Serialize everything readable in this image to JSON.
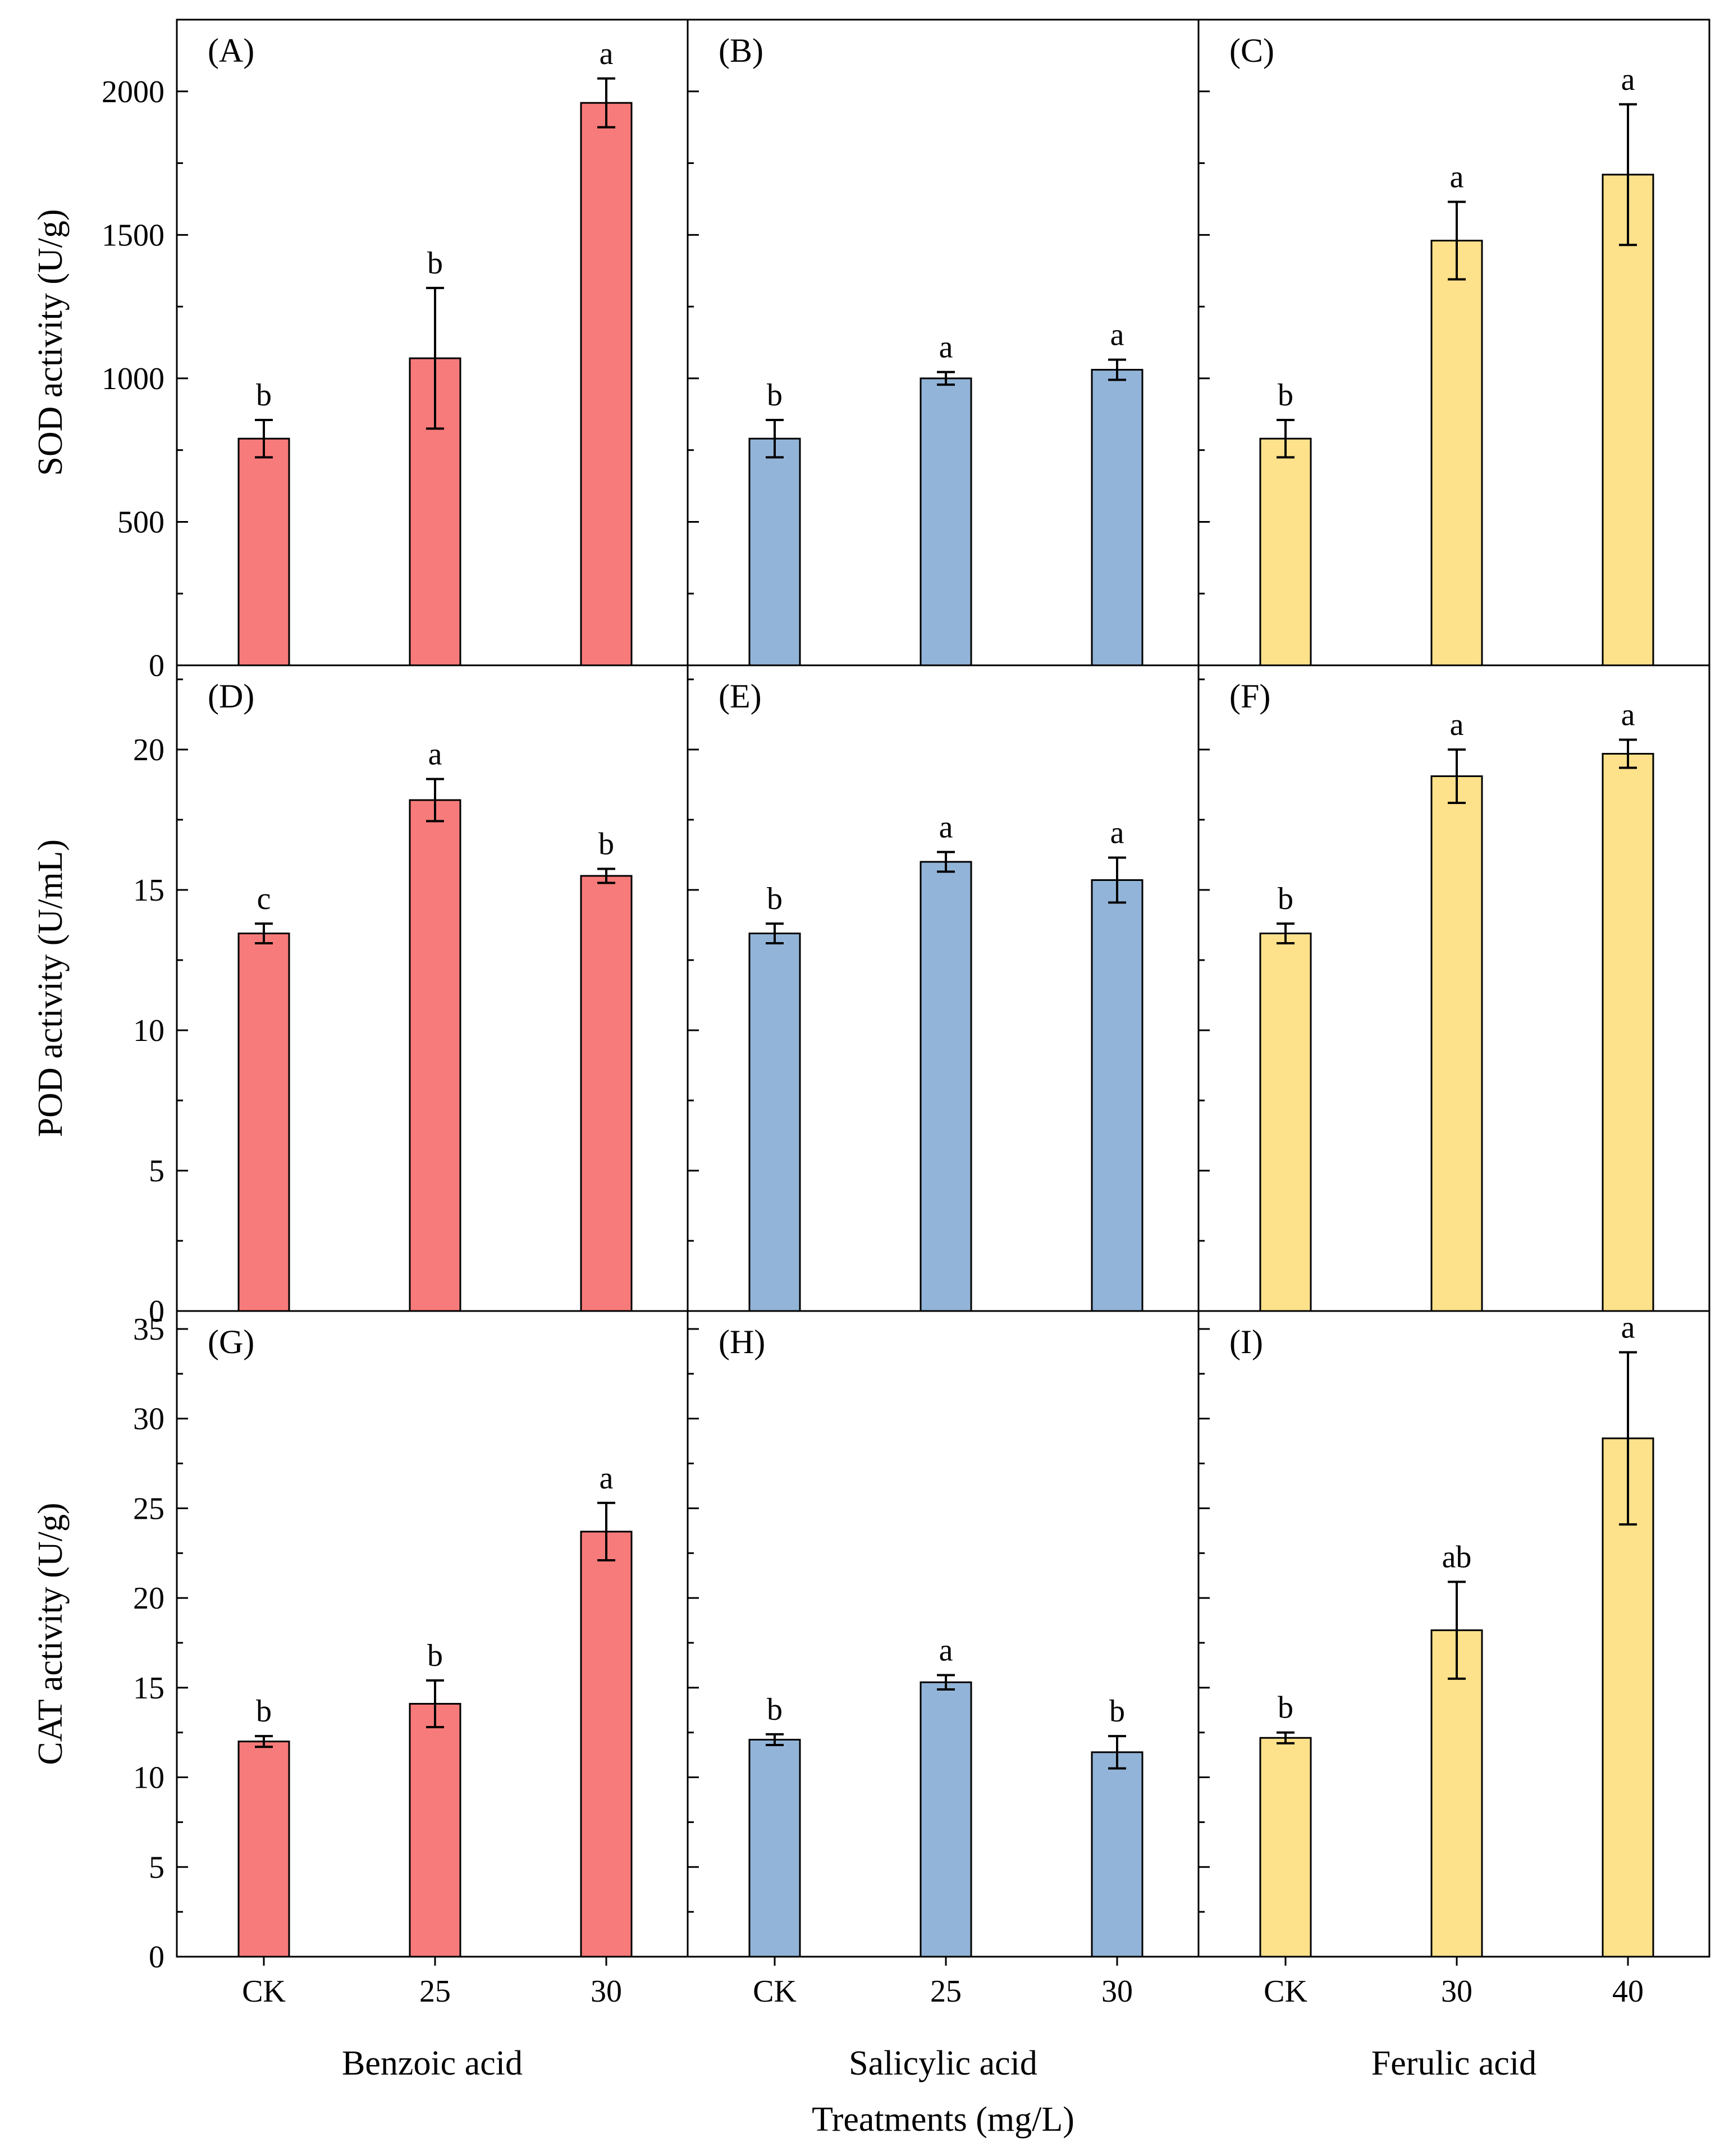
{
  "figure": {
    "x_axis_title": "Treatments (mg/L)"
  },
  "chart_data": [
    {
      "type": "bar",
      "panel": "(A)",
      "ylabel": "SOD activity (U/g)",
      "categories": [
        "CK",
        "25",
        "30"
      ],
      "values": [
        790,
        1070,
        1960
      ],
      "errors": [
        65,
        245,
        85
      ],
      "significance": [
        "b",
        "b",
        "a"
      ],
      "ylim": [
        0,
        2250
      ],
      "yticks": [
        0,
        500,
        1000,
        1500,
        2000
      ],
      "color": "#f77b7a",
      "xlabel": ""
    },
    {
      "type": "bar",
      "panel": "(B)",
      "ylabel": "",
      "categories": [
        "CK",
        "25",
        "30"
      ],
      "values": [
        790,
        1000,
        1030
      ],
      "errors": [
        65,
        22,
        35
      ],
      "significance": [
        "b",
        "a",
        "a"
      ],
      "ylim": [
        0,
        2250
      ],
      "yticks": [
        0,
        500,
        1000,
        1500,
        2000
      ],
      "color": "#92b4d8",
      "xlabel": ""
    },
    {
      "type": "bar",
      "panel": "(C)",
      "ylabel": "",
      "categories": [
        "CK",
        "30",
        "40"
      ],
      "values": [
        790,
        1480,
        1710
      ],
      "errors": [
        65,
        135,
        245
      ],
      "significance": [
        "b",
        "a",
        "a"
      ],
      "ylim": [
        0,
        2250
      ],
      "yticks": [
        0,
        500,
        1000,
        1500,
        2000
      ],
      "color": "#fde18b",
      "xlabel": ""
    },
    {
      "type": "bar",
      "panel": "(D)",
      "ylabel": "POD activity (U/mL)",
      "categories": [
        "CK",
        "25",
        "30"
      ],
      "values": [
        13.45,
        18.2,
        15.5
      ],
      "errors": [
        0.35,
        0.75,
        0.25
      ],
      "significance": [
        "c",
        "a",
        "b"
      ],
      "ylim": [
        0,
        23
      ],
      "yticks": [
        0,
        5,
        10,
        15,
        20
      ],
      "color": "#f77b7a",
      "xlabel": ""
    },
    {
      "type": "bar",
      "panel": "(E)",
      "ylabel": "",
      "categories": [
        "CK",
        "25",
        "30"
      ],
      "values": [
        13.45,
        16.0,
        15.35
      ],
      "errors": [
        0.35,
        0.35,
        0.8
      ],
      "significance": [
        "b",
        "a",
        "a"
      ],
      "ylim": [
        0,
        23
      ],
      "yticks": [
        0,
        5,
        10,
        15,
        20
      ],
      "color": "#92b4d8",
      "xlabel": ""
    },
    {
      "type": "bar",
      "panel": "(F)",
      "ylabel": "",
      "categories": [
        "CK",
        "30",
        "40"
      ],
      "values": [
        13.45,
        19.05,
        19.85
      ],
      "errors": [
        0.35,
        0.95,
        0.5
      ],
      "significance": [
        "b",
        "a",
        "a"
      ],
      "ylim": [
        0,
        23
      ],
      "yticks": [
        0,
        5,
        10,
        15,
        20
      ],
      "color": "#fde18b",
      "xlabel": ""
    },
    {
      "type": "bar",
      "panel": "(G)",
      "ylabel": "CAT activity (U/g)",
      "categories": [
        "CK",
        "25",
        "30"
      ],
      "values": [
        12.0,
        14.1,
        23.7
      ],
      "errors": [
        0.3,
        1.3,
        1.6
      ],
      "significance": [
        "b",
        "b",
        "a"
      ],
      "ylim": [
        0,
        36
      ],
      "yticks": [
        0,
        5,
        10,
        15,
        20,
        25,
        30,
        35
      ],
      "color": "#f77b7a",
      "xlabel": "Benzoic acid"
    },
    {
      "type": "bar",
      "panel": "(H)",
      "ylabel": "",
      "categories": [
        "CK",
        "25",
        "30"
      ],
      "values": [
        12.1,
        15.3,
        11.4
      ],
      "errors": [
        0.3,
        0.4,
        0.9
      ],
      "significance": [
        "b",
        "a",
        "b"
      ],
      "ylim": [
        0,
        36
      ],
      "yticks": [
        0,
        5,
        10,
        15,
        20,
        25,
        30,
        35
      ],
      "color": "#92b4d8",
      "xlabel": "Salicylic acid"
    },
    {
      "type": "bar",
      "panel": "(I)",
      "ylabel": "",
      "categories": [
        "CK",
        "30",
        "40"
      ],
      "values": [
        12.2,
        18.2,
        28.9
      ],
      "errors": [
        0.3,
        2.7,
        4.8
      ],
      "significance": [
        "b",
        "ab",
        "a"
      ],
      "ylim": [
        0,
        36
      ],
      "yticks": [
        0,
        5,
        10,
        15,
        20,
        25,
        30,
        35
      ],
      "color": "#fde18b",
      "xlabel": "Ferulic acid"
    }
  ]
}
